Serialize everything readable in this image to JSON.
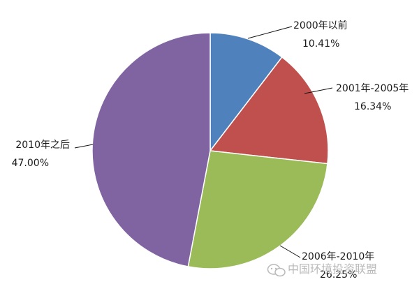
{
  "chart_data": {
    "type": "pie",
    "start_angle_deg": 0,
    "direction": "clockwise",
    "slices": [
      {
        "name": "2000年以前",
        "value": 10.41,
        "value_label": "10.41%",
        "color": "#4F81BD"
      },
      {
        "name": "2001年-2005年",
        "value": 16.34,
        "value_label": "16.34%",
        "color": "#C0504D"
      },
      {
        "name": "2006年-2010年",
        "value": 26.25,
        "value_label": "26.25%",
        "color": "#9BBB59"
      },
      {
        "name": "2010年之后",
        "value": 47.0,
        "value_label": "47.00%",
        "color": "#8064A2"
      }
    ]
  },
  "watermark": {
    "text": "中国环境投资联盟",
    "icon": "wechat-icon"
  }
}
